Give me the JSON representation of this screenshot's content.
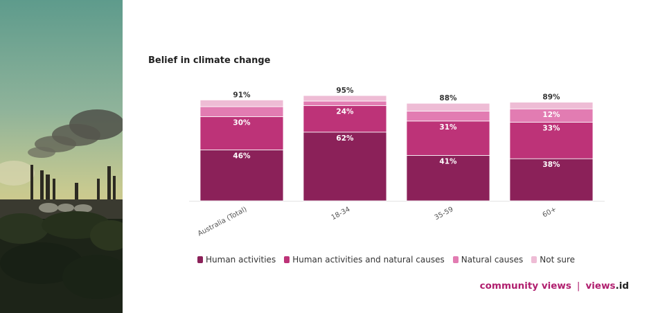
{
  "page_title": "Belief in climate change",
  "brand": {
    "part1": "community views",
    "separator": "|",
    "part2": "views",
    "part3": ".id"
  },
  "colors": {
    "human_activities": "#8b2159",
    "both": "#bd3378",
    "natural": "#e27cb2",
    "not_sure": "#eebcd5",
    "brand": "#b01e6e"
  },
  "chart_data": {
    "type": "bar",
    "stacked": true,
    "title": "Belief in climate change",
    "categories": [
      "Australia (Total)",
      "18-34",
      "35-59",
      "60+"
    ],
    "totals": [
      "91%",
      "95%",
      "88%",
      "89%"
    ],
    "series": [
      {
        "name": "Human activities",
        "values": [
          46,
          62,
          41,
          38
        ],
        "labels": [
          "46%",
          "62%",
          "41%",
          "38%"
        ]
      },
      {
        "name": "Human activities and natural causes",
        "values": [
          30,
          24,
          31,
          33
        ],
        "labels": [
          "30%",
          "24%",
          "31%",
          "33%"
        ]
      },
      {
        "name": "Natural causes",
        "values": [
          9,
          4,
          9,
          12
        ],
        "labels": [
          "",
          "",
          "",
          "12%"
        ]
      },
      {
        "name": "Not sure",
        "values": [
          6,
          5,
          7,
          6
        ],
        "labels": [
          "",
          "",
          "",
          ""
        ]
      }
    ],
    "ylim": [
      0,
      100
    ],
    "grid": false,
    "legend": "bottom"
  }
}
